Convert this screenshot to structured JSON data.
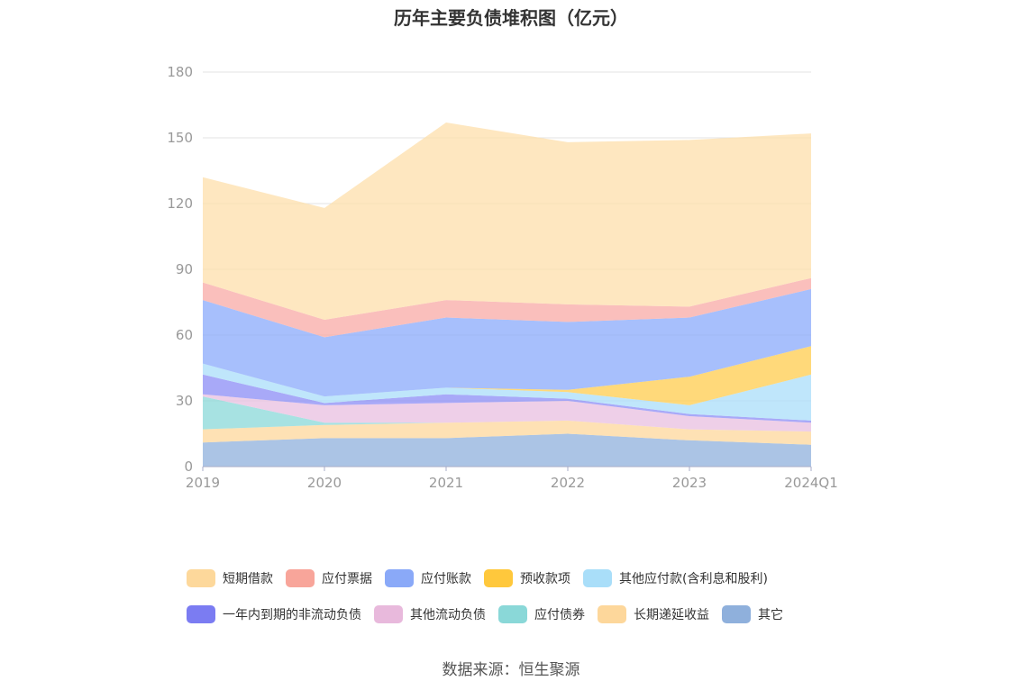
{
  "chart_data": {
    "type": "area",
    "stacked": true,
    "title": "历年主要负债堆积图（亿元）",
    "categories": [
      "2019",
      "2020",
      "2021",
      "2022",
      "2023",
      "2024Q1"
    ],
    "ylim": [
      0,
      180
    ],
    "yticks": [
      0,
      30,
      60,
      90,
      120,
      150,
      180
    ],
    "grid": true,
    "legend_position": "bottom",
    "series": [
      {
        "name": "其它",
        "color": "#8fb0dc",
        "values": [
          11,
          13,
          13,
          15,
          12,
          10
        ]
      },
      {
        "name": "长期递延收益",
        "color": "#fdd79b",
        "values": [
          6,
          6,
          7,
          6,
          5,
          6
        ]
      },
      {
        "name": "应付债券",
        "color": "#8ad8d8",
        "values": [
          15,
          1,
          0,
          0,
          0,
          0
        ]
      },
      {
        "name": "其他流动负债",
        "color": "#e8bfe0",
        "values": [
          1,
          8,
          9,
          9,
          6,
          4
        ]
      },
      {
        "name": "一年内到期的非流动负债",
        "color": "#8b8cf5",
        "values": [
          9,
          1,
          4,
          1,
          1,
          1
        ]
      },
      {
        "name": "其他应付款(含利息和股利)",
        "color": "#a9def9",
        "values": [
          5,
          3,
          3,
          3,
          4,
          21
        ]
      },
      {
        "name": "预收款项",
        "color": "#ffcc4d",
        "values": [
          0,
          0,
          0,
          1,
          13,
          13
        ]
      },
      {
        "name": "应付账款",
        "color": "#8aaafb",
        "values": [
          29,
          27,
          32,
          31,
          27,
          26
        ]
      },
      {
        "name": "应付票据",
        "color": "#f8aaa6",
        "values": [
          8,
          8,
          8,
          8,
          5,
          5
        ]
      },
      {
        "name": "短期借款",
        "color": "#fedfab",
        "values": [
          48,
          51,
          81,
          74,
          76,
          66
        ]
      }
    ]
  },
  "legend": {
    "rows": [
      [
        {
          "label": "短期借款",
          "color": "#fdd89b"
        },
        {
          "label": "应付票据",
          "color": "#f8a59a"
        },
        {
          "label": "应付账款",
          "color": "#8aa9f8"
        },
        {
          "label": "预收款项",
          "color": "#ffc83c"
        },
        {
          "label": "其他应付款(含利息和股利)",
          "color": "#a9def9"
        }
      ],
      [
        {
          "label": "一年内到期的非流动负债",
          "color": "#7b7cf2"
        },
        {
          "label": "其他流动负债",
          "color": "#e8b9dc"
        },
        {
          "label": "应付债券",
          "color": "#8ad8d8"
        },
        {
          "label": "长期递延收益",
          "color": "#fdd79b"
        },
        {
          "label": "其它",
          "color": "#8fb0dc"
        }
      ]
    ]
  },
  "source": "数据来源：恒生聚源"
}
